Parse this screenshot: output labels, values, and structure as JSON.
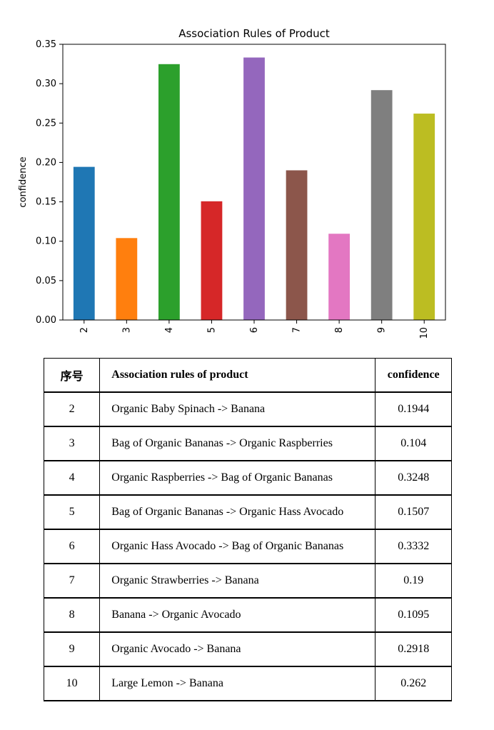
{
  "chart_data": {
    "type": "bar",
    "title": "Association Rules of Product",
    "xlabel": "",
    "ylabel": "confidence",
    "categories": [
      "2",
      "3",
      "4",
      "5",
      "6",
      "7",
      "8",
      "9",
      "10"
    ],
    "values": [
      0.1944,
      0.104,
      0.3248,
      0.1507,
      0.3332,
      0.19,
      0.1095,
      0.2918,
      0.262
    ],
    "ylim": [
      0,
      0.35
    ],
    "yticks": [
      "0.00",
      "0.05",
      "0.10",
      "0.15",
      "0.20",
      "0.25",
      "0.30",
      "0.35"
    ],
    "grid": false,
    "bar_colors": [
      "#1f77b4",
      "#ff7f0e",
      "#2ca02c",
      "#d62728",
      "#9467bd",
      "#8c564b",
      "#e377c2",
      "#7f7f7f",
      "#bcbd22"
    ]
  },
  "table": {
    "headers": [
      "序号",
      "Association rules of product",
      "confidence"
    ],
    "rows": [
      [
        "2",
        "Organic Baby Spinach -> Banana",
        "0.1944"
      ],
      [
        "3",
        "Bag of Organic Bananas -> Organic Raspberries",
        "0.104"
      ],
      [
        "4",
        "Organic Raspberries -> Bag of Organic Bananas",
        "0.3248"
      ],
      [
        "5",
        "Bag of Organic Bananas -> Organic Hass Avocado",
        "0.1507"
      ],
      [
        "6",
        "Organic Hass Avocado -> Bag of Organic Bananas",
        "0.3332"
      ],
      [
        "7",
        "Organic Strawberries -> Banana",
        "0.19"
      ],
      [
        "8",
        "Banana -> Organic Avocado",
        "0.1095"
      ],
      [
        "9",
        "Organic Avocado -> Banana",
        "0.2918"
      ],
      [
        "10",
        "Large Lemon -> Banana",
        "0.262"
      ]
    ]
  }
}
